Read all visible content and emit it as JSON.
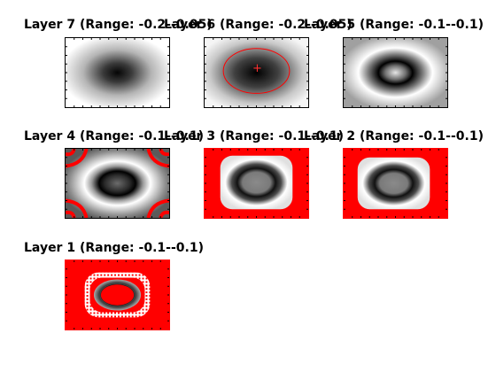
{
  "figure": {
    "panels": [
      {
        "id": "layer7",
        "title": "Layer 7 (Range: -0.2--0.05)",
        "overlay": "none"
      },
      {
        "id": "layer6",
        "title": "Layer 6 (Range: -0.2--0.05)",
        "overlay": "ellipse-contour-with-center-marker"
      },
      {
        "id": "layer5",
        "title": "Layer 5 (Range: -0.1--0.1)",
        "overlay": "none"
      },
      {
        "id": "layer4",
        "title": "Layer 4 (Range: -0.1--0.1)",
        "overlay": "corner-red-contours"
      },
      {
        "id": "layer3",
        "title": "Layer 3 (Range: -0.1--0.1)",
        "overlay": "red-fill-outside"
      },
      {
        "id": "layer2",
        "title": "Layer 2 (Range: -0.1--0.1)",
        "overlay": "red-fill-outside"
      },
      {
        "id": "layer1",
        "title": "Layer 1 (Range: -0.1--0.1)",
        "overlay": "red-fill-with-dashed-rings"
      }
    ],
    "colors": {
      "contour": "#ff0000",
      "dark": "#000000",
      "light": "#ffffff",
      "mid_gray": "#7a7a7a"
    },
    "center_marker_glyph": "+"
  }
}
